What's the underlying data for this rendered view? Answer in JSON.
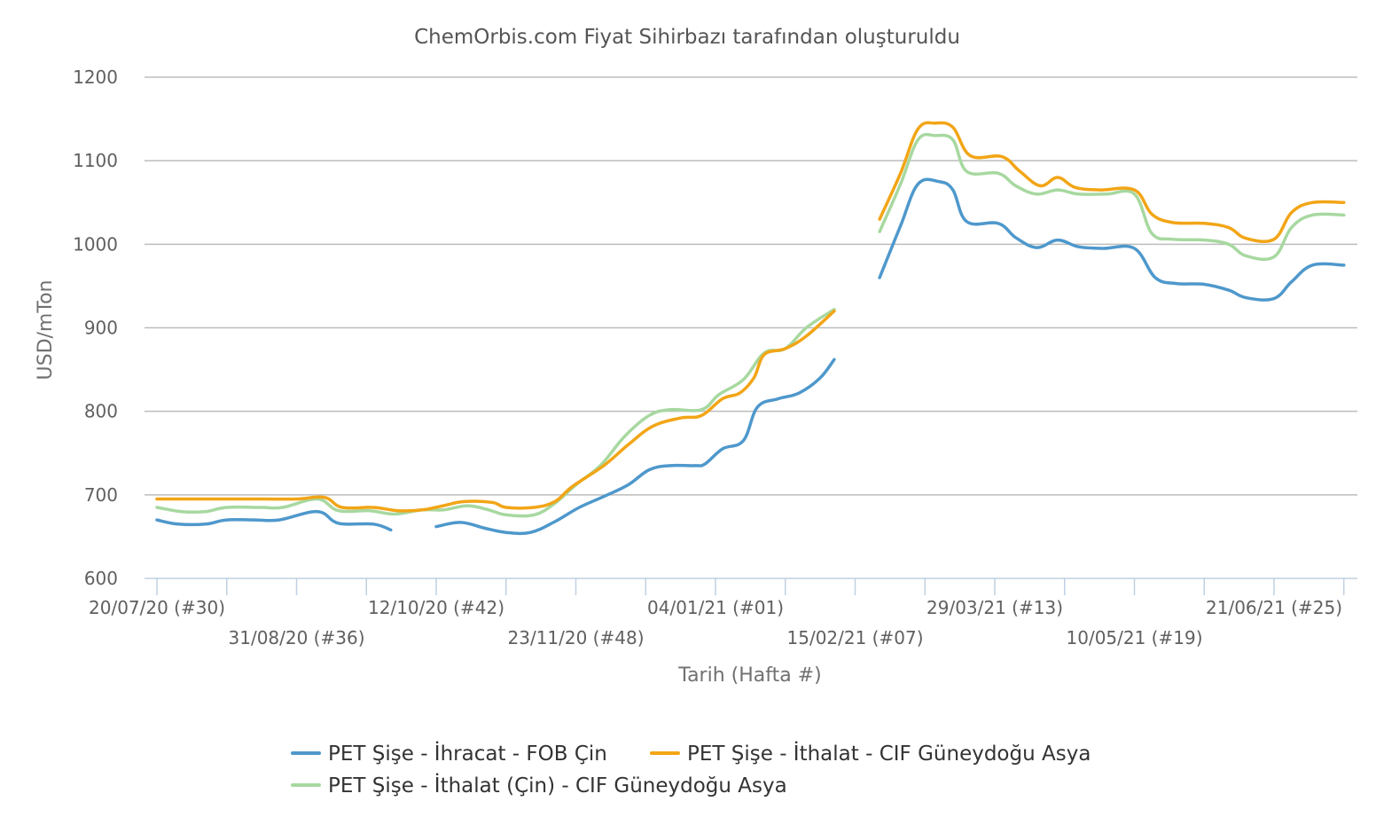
{
  "chart_data": {
    "type": "line",
    "title": "ChemOrbis.com Fiyat Sihirbazı tarafından oluşturuldu",
    "xlabel": "Tarih (Hafta #)",
    "ylabel": "USD/mTon",
    "ylim": [
      600,
      1200
    ],
    "yticks": [
      "1200",
      "1100",
      "1000",
      "900",
      "800",
      "700",
      "600"
    ],
    "x_tick_count": 18,
    "x_labels": [
      {
        "index": 0,
        "label": "20/07/20 (#30)",
        "row": 0
      },
      {
        "index": 2,
        "label": "31/08/20 (#36)",
        "row": 1
      },
      {
        "index": 4,
        "label": "12/10/20 (#42)",
        "row": 0
      },
      {
        "index": 6,
        "label": "23/11/20 (#48)",
        "row": 1
      },
      {
        "index": 8,
        "label": "04/01/21 (#01)",
        "row": 0
      },
      {
        "index": 10,
        "label": "15/02/21 (#07)",
        "row": 1
      },
      {
        "index": 12,
        "label": "29/03/21 (#13)",
        "row": 0
      },
      {
        "index": 14,
        "label": "10/05/21 (#19)",
        "row": 1
      },
      {
        "index": 16,
        "label": "21/06/21 (#25)",
        "row": 0
      }
    ],
    "legend_position": "bottom",
    "series": [
      {
        "name": "PET Şişe - İhracat - FOB Çin",
        "color": "#4e98cc",
        "points": [
          [
            0,
            670
          ],
          [
            0.3,
            665
          ],
          [
            0.7,
            665
          ],
          [
            1,
            670
          ],
          [
            1.4,
            670
          ],
          [
            1.75,
            670
          ],
          [
            2.3,
            680
          ],
          [
            2.6,
            666
          ],
          [
            3.1,
            665
          ],
          [
            3.35,
            658
          ],
          null,
          [
            4,
            662
          ],
          [
            4.35,
            667
          ],
          [
            4.7,
            660
          ],
          [
            5,
            655
          ],
          [
            5.35,
            655
          ],
          [
            5.7,
            668
          ],
          [
            6.05,
            685
          ],
          [
            6.4,
            698
          ],
          [
            6.75,
            712
          ],
          [
            7.05,
            730
          ],
          [
            7.35,
            735
          ],
          [
            7.7,
            735
          ],
          [
            7.85,
            737
          ],
          [
            8.1,
            755
          ],
          [
            8.4,
            765
          ],
          [
            8.6,
            805
          ],
          [
            8.9,
            815
          ],
          [
            9.2,
            822
          ],
          [
            9.5,
            840
          ],
          [
            9.7,
            862
          ],
          null,
          [
            10.35,
            960
          ],
          [
            10.65,
            1022
          ],
          [
            10.9,
            1072
          ],
          [
            11.2,
            1075
          ],
          [
            11.4,
            1065
          ],
          [
            11.6,
            1027
          ],
          [
            12.05,
            1025
          ],
          [
            12.3,
            1008
          ],
          [
            12.6,
            996
          ],
          [
            12.9,
            1005
          ],
          [
            13.2,
            997
          ],
          [
            13.55,
            995
          ],
          [
            14,
            995
          ],
          [
            14.3,
            960
          ],
          [
            14.6,
            953
          ],
          [
            15,
            952
          ],
          [
            15.35,
            945
          ],
          [
            15.6,
            936
          ],
          [
            16,
            935
          ],
          [
            16.25,
            955
          ],
          [
            16.55,
            975
          ],
          [
            17,
            975
          ]
        ]
      },
      {
        "name": "PET Şişe - İthalat - CIF Güneydoğu Asya",
        "color": "#f2a516",
        "points": [
          [
            0,
            695
          ],
          [
            0.5,
            695
          ],
          [
            1,
            695
          ],
          [
            1.5,
            695
          ],
          [
            2,
            695
          ],
          [
            2.4,
            697
          ],
          [
            2.65,
            685
          ],
          [
            3.1,
            685
          ],
          [
            3.45,
            681
          ],
          [
            3.8,
            682
          ],
          [
            4.1,
            687
          ],
          [
            4.4,
            692
          ],
          [
            4.8,
            691
          ],
          [
            5,
            685
          ],
          [
            5.4,
            685
          ],
          [
            5.7,
            692
          ],
          [
            5.95,
            710
          ],
          [
            6.4,
            735
          ],
          [
            6.75,
            760
          ],
          [
            7.1,
            782
          ],
          [
            7.5,
            792
          ],
          [
            7.8,
            795
          ],
          [
            8.1,
            815
          ],
          [
            8.35,
            822
          ],
          [
            8.55,
            840
          ],
          [
            8.7,
            868
          ],
          [
            9,
            875
          ],
          [
            9.3,
            890
          ],
          [
            9.7,
            920
          ],
          null,
          [
            10.35,
            1030
          ],
          [
            10.65,
            1085
          ],
          [
            10.9,
            1138
          ],
          [
            11.15,
            1145
          ],
          [
            11.4,
            1140
          ],
          [
            11.65,
            1106
          ],
          [
            12.1,
            1105
          ],
          [
            12.35,
            1088
          ],
          [
            12.65,
            1070
          ],
          [
            12.9,
            1080
          ],
          [
            13.15,
            1068
          ],
          [
            13.5,
            1065
          ],
          [
            14,
            1065
          ],
          [
            14.25,
            1036
          ],
          [
            14.55,
            1026
          ],
          [
            15,
            1025
          ],
          [
            15.35,
            1020
          ],
          [
            15.6,
            1007
          ],
          [
            16,
            1006
          ],
          [
            16.25,
            1038
          ],
          [
            16.55,
            1050
          ],
          [
            17,
            1050
          ]
        ]
      },
      {
        "name": "PET Şişe - İthalat (Çin) - CIF Güneydoğu Asya",
        "color": "#a7d8a0",
        "points": [
          [
            0,
            685
          ],
          [
            0.35,
            680
          ],
          [
            0.7,
            680
          ],
          [
            1,
            685
          ],
          [
            1.5,
            685
          ],
          [
            1.8,
            685
          ],
          [
            2.3,
            695
          ],
          [
            2.6,
            681
          ],
          [
            3.05,
            681
          ],
          [
            3.4,
            677
          ],
          [
            3.8,
            682
          ],
          [
            4.1,
            682
          ],
          [
            4.45,
            687
          ],
          [
            4.75,
            682
          ],
          [
            5,
            676
          ],
          [
            5.4,
            676
          ],
          [
            5.7,
            690
          ],
          [
            6,
            712
          ],
          [
            6.35,
            735
          ],
          [
            6.7,
            770
          ],
          [
            7.05,
            795
          ],
          [
            7.35,
            802
          ],
          [
            7.8,
            802
          ],
          [
            8.05,
            820
          ],
          [
            8.4,
            838
          ],
          [
            8.7,
            870
          ],
          [
            9,
            875
          ],
          [
            9.3,
            900
          ],
          [
            9.7,
            922
          ],
          null,
          [
            10.35,
            1015
          ],
          [
            10.65,
            1072
          ],
          [
            10.9,
            1125
          ],
          [
            11.15,
            1130
          ],
          [
            11.4,
            1125
          ],
          [
            11.6,
            1087
          ],
          [
            12.05,
            1085
          ],
          [
            12.3,
            1070
          ],
          [
            12.6,
            1060
          ],
          [
            12.9,
            1065
          ],
          [
            13.2,
            1060
          ],
          [
            13.6,
            1060
          ],
          [
            14,
            1060
          ],
          [
            14.25,
            1013
          ],
          [
            14.55,
            1006
          ],
          [
            15,
            1005
          ],
          [
            15.35,
            1000
          ],
          [
            15.6,
            986
          ],
          [
            16,
            985
          ],
          [
            16.25,
            1020
          ],
          [
            16.55,
            1035
          ],
          [
            17,
            1035
          ]
        ]
      }
    ]
  }
}
